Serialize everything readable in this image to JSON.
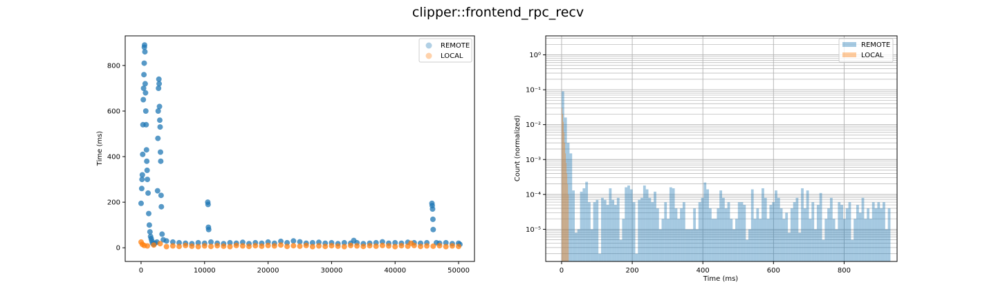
{
  "suptitle": "clipper::frontend_rpc_recv",
  "colors": {
    "remote": "#1f77b4",
    "local": "#ff7f0e",
    "grid": "#b0b0b0"
  },
  "chart_data": [
    {
      "type": "scatter",
      "title": "",
      "xlabel": "",
      "ylabel": "Time (ms)",
      "xlim": [
        -2500,
        52500
      ],
      "ylim": [
        -60,
        930
      ],
      "xticks": [
        0,
        10000,
        20000,
        30000,
        40000,
        50000
      ],
      "xticklabels": [
        "0",
        "10000",
        "20000",
        "30000",
        "40000",
        "50000"
      ],
      "yticks": [
        0,
        200,
        400,
        600,
        800
      ],
      "yticklabels": [
        "0",
        "200",
        "400",
        "600",
        "800"
      ],
      "grid": false,
      "legend": "top-right",
      "series": [
        {
          "name": "REMOTE",
          "points": [
            [
              0,
              195
            ],
            [
              100,
              260
            ],
            [
              150,
              300
            ],
            [
              200,
              320
            ],
            [
              250,
              410
            ],
            [
              300,
              540
            ],
            [
              350,
              650
            ],
            [
              400,
              700
            ],
            [
              450,
              760
            ],
            [
              500,
              810
            ],
            [
              520,
              880
            ],
            [
              550,
              890
            ],
            [
              600,
              860
            ],
            [
              650,
              720
            ],
            [
              700,
              680
            ],
            [
              750,
              600
            ],
            [
              800,
              540
            ],
            [
              850,
              430
            ],
            [
              900,
              380
            ],
            [
              950,
              340
            ],
            [
              1000,
              300
            ],
            [
              1100,
              240
            ],
            [
              1200,
              150
            ],
            [
              1300,
              100
            ],
            [
              1400,
              70
            ],
            [
              1500,
              50
            ],
            [
              1600,
              40
            ],
            [
              1700,
              30
            ],
            [
              1800,
              20
            ],
            [
              2000,
              15
            ],
            [
              2200,
              20
            ],
            [
              2500,
              25
            ],
            [
              2600,
              250
            ],
            [
              2650,
              480
            ],
            [
              2700,
              600
            ],
            [
              2750,
              700
            ],
            [
              2800,
              740
            ],
            [
              2850,
              720
            ],
            [
              2900,
              620
            ],
            [
              2950,
              560
            ],
            [
              3000,
              530
            ],
            [
              3050,
              420
            ],
            [
              3100,
              380
            ],
            [
              3150,
              230
            ],
            [
              3200,
              180
            ],
            [
              3300,
              60
            ],
            [
              3500,
              35
            ],
            [
              4000,
              30
            ],
            [
              5000,
              25
            ],
            [
              6000,
              22
            ],
            [
              7000,
              20
            ],
            [
              8000,
              18
            ],
            [
              9000,
              22
            ],
            [
              10000,
              20
            ],
            [
              10500,
              200
            ],
            [
              10550,
              190
            ],
            [
              10600,
              90
            ],
            [
              10650,
              80
            ],
            [
              11000,
              25
            ],
            [
              12000,
              20
            ],
            [
              13000,
              18
            ],
            [
              14000,
              22
            ],
            [
              15000,
              20
            ],
            [
              16000,
              24
            ],
            [
              17000,
              18
            ],
            [
              18000,
              22
            ],
            [
              19000,
              20
            ],
            [
              20000,
              25
            ],
            [
              21000,
              20
            ],
            [
              22000,
              28
            ],
            [
              23000,
              22
            ],
            [
              24000,
              30
            ],
            [
              25000,
              26
            ],
            [
              26000,
              20
            ],
            [
              27000,
              22
            ],
            [
              28000,
              24
            ],
            [
              29000,
              20
            ],
            [
              30000,
              22
            ],
            [
              31000,
              18
            ],
            [
              32000,
              22
            ],
            [
              33000,
              20
            ],
            [
              33500,
              32
            ],
            [
              34000,
              22
            ],
            [
              35000,
              18
            ],
            [
              36000,
              20
            ],
            [
              37000,
              22
            ],
            [
              38000,
              26
            ],
            [
              39000,
              20
            ],
            [
              40000,
              22
            ],
            [
              41000,
              20
            ],
            [
              42000,
              24
            ],
            [
              43000,
              22
            ],
            [
              44000,
              20
            ],
            [
              45000,
              22
            ],
            [
              45800,
              195
            ],
            [
              45850,
              185
            ],
            [
              45900,
              170
            ],
            [
              45950,
              125
            ],
            [
              46000,
              80
            ],
            [
              46500,
              22
            ],
            [
              47000,
              20
            ],
            [
              48000,
              22
            ],
            [
              49000,
              18
            ],
            [
              50000,
              20
            ],
            [
              50200,
              15
            ]
          ]
        },
        {
          "name": "LOCAL",
          "points": [
            [
              0,
              25
            ],
            [
              200,
              15
            ],
            [
              500,
              10
            ],
            [
              1000,
              8
            ],
            [
              2000,
              12
            ],
            [
              3000,
              18
            ],
            [
              4000,
              5
            ],
            [
              5000,
              8
            ],
            [
              6000,
              6
            ],
            [
              7000,
              10
            ],
            [
              8000,
              7
            ],
            [
              9000,
              5
            ],
            [
              10000,
              8
            ],
            [
              11000,
              6
            ],
            [
              12000,
              9
            ],
            [
              13000,
              7
            ],
            [
              14000,
              5
            ],
            [
              15000,
              10
            ],
            [
              16000,
              8
            ],
            [
              17000,
              6
            ],
            [
              18000,
              9
            ],
            [
              19000,
              7
            ],
            [
              20000,
              10
            ],
            [
              21000,
              8
            ],
            [
              22000,
              12
            ],
            [
              23000,
              6
            ],
            [
              24000,
              9
            ],
            [
              25000,
              7
            ],
            [
              26000,
              10
            ],
            [
              27000,
              5
            ],
            [
              28000,
              8
            ],
            [
              29000,
              6
            ],
            [
              30000,
              9
            ],
            [
              31000,
              7
            ],
            [
              32000,
              5
            ],
            [
              33000,
              10
            ],
            [
              34000,
              8
            ],
            [
              35000,
              6
            ],
            [
              36000,
              9
            ],
            [
              37000,
              7
            ],
            [
              38000,
              10
            ],
            [
              39000,
              8
            ],
            [
              40000,
              5
            ],
            [
              41000,
              9
            ],
            [
              42000,
              7
            ],
            [
              42500,
              20
            ],
            [
              43000,
              10
            ],
            [
              44000,
              6
            ],
            [
              45000,
              8
            ],
            [
              46000,
              7
            ],
            [
              47000,
              9
            ],
            [
              48000,
              5
            ],
            [
              49000,
              8
            ],
            [
              50000,
              6
            ]
          ]
        }
      ]
    },
    {
      "type": "bar",
      "subtype": "histogram",
      "title": "",
      "xlabel": "Time (ms)",
      "ylabel": "Count (normalized)",
      "xscale": "linear",
      "yscale": "log",
      "xlim": [
        -45,
        950
      ],
      "ylim": [
        1.2e-06,
        3.5
      ],
      "xticks": [
        0,
        200,
        400,
        600,
        800
      ],
      "xticklabels": [
        "0",
        "200",
        "400",
        "600",
        "800"
      ],
      "yticks": [
        1e-05,
        0.0001,
        0.001,
        0.01,
        0.1,
        1
      ],
      "yticklabels": [
        "10⁻⁵",
        "10⁻⁴",
        "10⁻³",
        "10⁻²",
        "10⁻¹",
        "10⁰"
      ],
      "grid": true,
      "legend": "top-right",
      "series": [
        {
          "name": "REMOTE",
          "bin_start": 0,
          "bin_width": 7.45,
          "values": [
            0.09,
            0.016,
            0.003,
            0.0015,
            0.00013,
            8e-06,
            1e-05,
            0.00012,
            0.00015,
            0.00023,
            6e-05,
            1e-05,
            6e-05,
            7e-05,
            2e-06,
            8e-05,
            7e-05,
            5e-05,
            0.00015,
            7e-05,
            5e-05,
            8e-05,
            5e-06,
            2e-05,
            0.00016,
            0.00018,
            0.00014,
            6e-05,
            2e-06,
            7e-05,
            8e-05,
            0.00018,
            0.00014,
            8e-05,
            6e-05,
            0.00012,
            4e-05,
            1e-05,
            2e-05,
            6e-05,
            2e-05,
            0.00016,
            0.00015,
            4e-05,
            2e-05,
            4e-05,
            6e-05,
            1e-05,
            1e-05,
            1e-05,
            4e-05,
            1e-05,
            6e-05,
            8e-05,
            0.00022,
            0.00014,
            4e-05,
            2e-05,
            2e-05,
            4e-05,
            0.00013,
            8e-05,
            4e-05,
            6e-05,
            2e-05,
            1e-05,
            2e-05,
            6e-05,
            6e-05,
            5e-05,
            5e-06,
            1e-05,
            0.00014,
            2e-05,
            4e-05,
            2e-05,
            0.00015,
            8e-05,
            2e-05,
            5e-05,
            6e-05,
            0.00013,
            8e-05,
            4e-05,
            2e-05,
            3e-05,
            8e-06,
            4e-05,
            6e-05,
            8e-05,
            8e-06,
            0.00015,
            4e-05,
            0.00013,
            2e-05,
            6e-05,
            1e-05,
            5e-05,
            0.00011,
            5e-06,
            2e-05,
            4e-05,
            8e-05,
            2e-05,
            1e-05,
            6e-05,
            5e-05,
            2e-05,
            4e-05,
            6e-05,
            5e-06,
            2e-05,
            5e-05,
            3e-05,
            8e-05,
            2e-05,
            4e-05,
            2e-05,
            6e-05,
            4e-05,
            6e-05,
            4e-05,
            6e-05,
            1e-05,
            4e-05
          ]
        },
        {
          "name": "LOCAL",
          "bin_start": 0,
          "bin_width": 2,
          "values": [
            0.03,
            0.02,
            0.012,
            0.006,
            0.003,
            0.0015,
            0.0008,
            0.0004,
            0.0002,
            0.0001
          ]
        }
      ]
    }
  ]
}
